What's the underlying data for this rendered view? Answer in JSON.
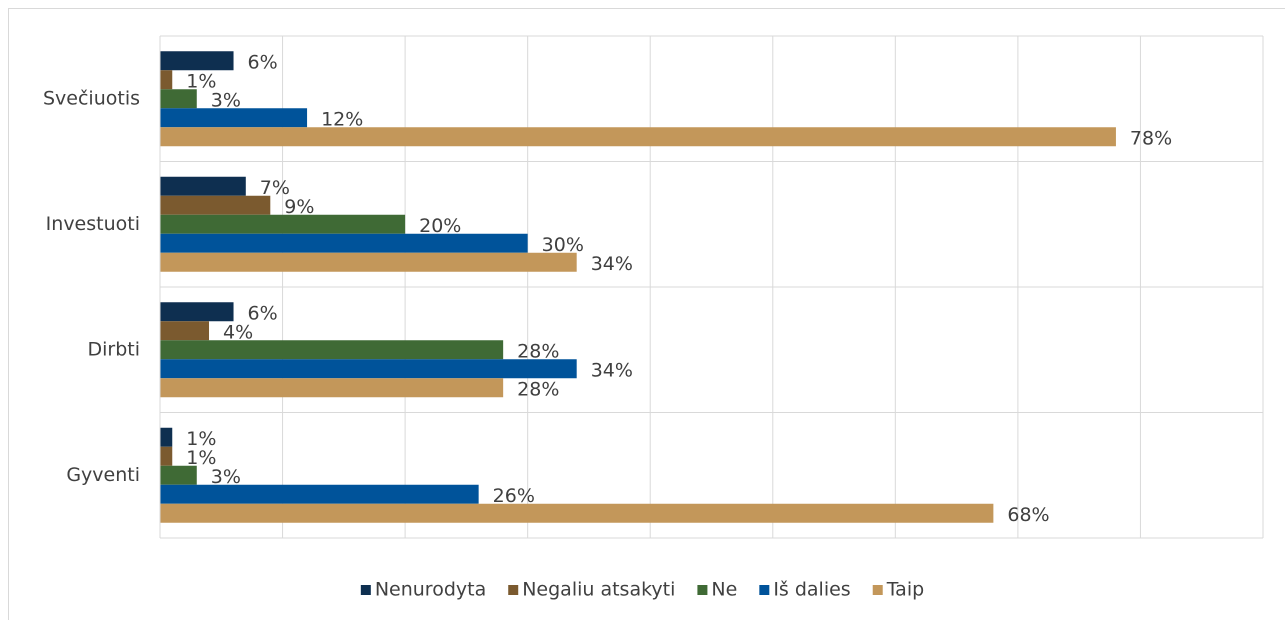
{
  "chart_data": {
    "type": "hbar",
    "categories": [
      "Svečiuotis",
      "Investuoti",
      "Dirbti",
      "Gyventi"
    ],
    "series": [
      {
        "name": "Nenurodyta",
        "color": "#0e2f50",
        "values": [
          6,
          7,
          6,
          1
        ],
        "value_labels": [
          "6%",
          "7%",
          "6%",
          "1%"
        ]
      },
      {
        "name": "Negaliu atsakyti",
        "color": "#7b5a2f",
        "values": [
          1,
          9,
          4,
          1
        ],
        "value_labels": [
          "1%",
          "9%",
          "4%",
          "1%"
        ]
      },
      {
        "name": "Ne",
        "color": "#3f6a35",
        "values": [
          3,
          20,
          28,
          3
        ],
        "value_labels": [
          "3%",
          "20%",
          "28%",
          "3%"
        ]
      },
      {
        "name": "Iš dalies",
        "color": "#00539a",
        "values": [
          12,
          30,
          34,
          26
        ],
        "value_labels": [
          "12%",
          "30%",
          "34%",
          "26%"
        ]
      },
      {
        "name": "Taip",
        "color": "#c3975a",
        "values": [
          78,
          34,
          28,
          68
        ],
        "value_labels": [
          "78%",
          "34%",
          "28%",
          "68%"
        ]
      }
    ],
    "xlim": [
      0,
      90
    ],
    "xticks": [
      0,
      10,
      20,
      30,
      40,
      50,
      60,
      70,
      80,
      90
    ],
    "grid": true,
    "legend": "bottom"
  }
}
